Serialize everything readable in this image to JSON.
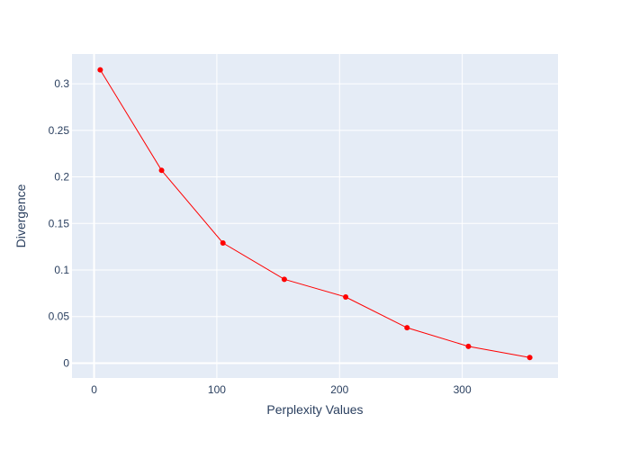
{
  "chart_data": {
    "type": "line",
    "title": "",
    "xlabel": "Perplexity Values",
    "ylabel": "Divergence",
    "xlim": [
      -18,
      378
    ],
    "ylim": [
      -0.016,
      0.332
    ],
    "x_ticks": [
      0,
      100,
      200,
      300
    ],
    "x_tick_labels": [
      "0",
      "100",
      "200",
      "300"
    ],
    "y_ticks": [
      0,
      0.05,
      0.1,
      0.15,
      0.2,
      0.25,
      0.3
    ],
    "y_tick_labels": [
      "0",
      "0.05",
      "0.1",
      "0.15",
      "0.2",
      "0.25",
      "0.3"
    ],
    "grid": true,
    "colors": {
      "plot_bg": "#e5ecf6",
      "grid": "#ffffff",
      "series": "#ff0000",
      "text": "#2a3f5f"
    },
    "series": [
      {
        "x": [
          5,
          55,
          105,
          155,
          205,
          255,
          305,
          355
        ],
        "y": [
          0.315,
          0.207,
          0.129,
          0.09,
          0.071,
          0.038,
          0.018,
          0.006
        ],
        "mode": "lines+markers"
      }
    ]
  }
}
